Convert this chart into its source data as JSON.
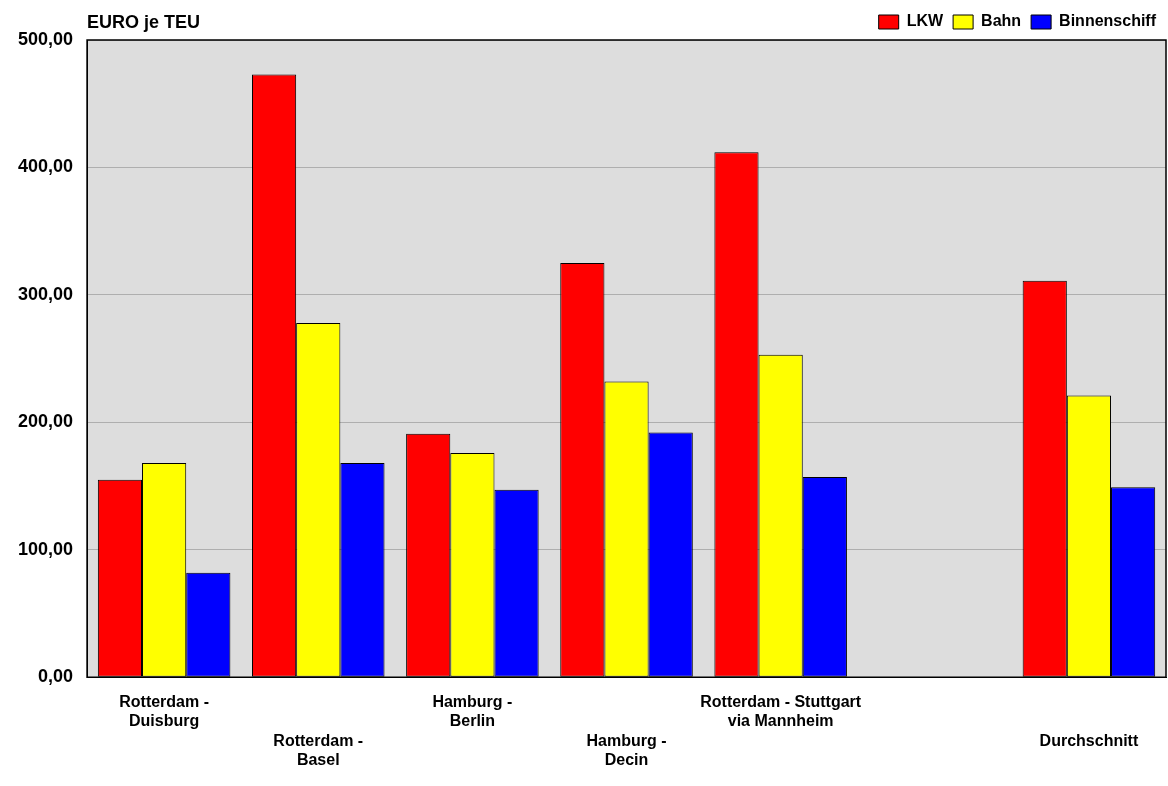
{
  "chart_data": {
    "type": "bar",
    "ylabel": "EURO je TEU",
    "categories": [
      "Rotterdam - Duisburg",
      "Rotterdam - Basel",
      "Hamburg - Berlin",
      "Hamburg - Decin",
      "Rotterdam - Stuttgart via Mannheim",
      null,
      "Durchschnitt"
    ],
    "series": [
      {
        "name": "LKW",
        "color": "#ff0000",
        "values": [
          155,
          473,
          191,
          325,
          412,
          null,
          311
        ]
      },
      {
        "name": "Bahn",
        "color": "#ffff00",
        "values": [
          168,
          278,
          176,
          232,
          253,
          null,
          221
        ]
      },
      {
        "name": "Binnenschiff",
        "color": "#0000ff",
        "values": [
          82,
          168,
          147,
          192,
          157,
          null,
          149
        ]
      }
    ],
    "ylim": [
      0,
      500
    ],
    "yticks": [
      {
        "value": 0,
        "label": "0,00"
      },
      {
        "value": 100,
        "label": "100,00"
      },
      {
        "value": 200,
        "label": "200,00"
      },
      {
        "value": 300,
        "label": "300,00"
      },
      {
        "value": 400,
        "label": "400,00"
      },
      {
        "value": 500,
        "label": "500,00"
      }
    ],
    "grid": "y",
    "legend": "top right"
  }
}
